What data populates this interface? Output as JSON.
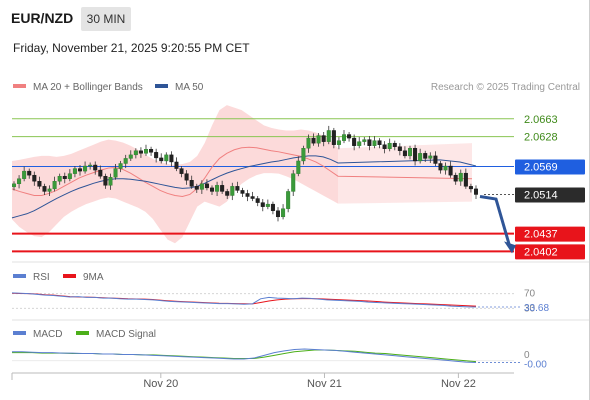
{
  "header": {
    "pair": "EUR/NZD",
    "timeframe": "30 MIN",
    "timestamp": "Friday, November 21, 2025 9:20:55 PM CET"
  },
  "chart_data": [
    {
      "type": "candlestick",
      "legend": [
        {
          "label": "MA 20 + Bollinger Bands",
          "color": "#f08080"
        },
        {
          "label": "MA 50",
          "color": "#2f5597"
        }
      ],
      "credit": "Research © 2025 Trading Central",
      "y_range": [
        2.0385,
        2.07
      ],
      "levels": [
        {
          "value": 2.0663,
          "label": "2.0663",
          "color": "#8ac552",
          "style": "resistance-line"
        },
        {
          "value": 2.0628,
          "label": "2.0628",
          "color": "#8ac552",
          "style": "resistance-line"
        },
        {
          "value": 2.0569,
          "label": "2.0569",
          "color": "#1f5fe0",
          "style": "pivot-box"
        },
        {
          "value": 2.0514,
          "label": "2.0514",
          "color": "#2b2b2b",
          "style": "last-price-box"
        },
        {
          "value": 2.0437,
          "label": "2.0437",
          "color": "#e8141b",
          "style": "target-box"
        },
        {
          "value": 2.0402,
          "label": "2.0402",
          "color": "#e8141b",
          "style": "target-box"
        }
      ],
      "forecast_arrow": {
        "from": 2.051,
        "to": 2.0402,
        "color": "#2f5597"
      },
      "candles_close": [
        2.0535,
        2.0545,
        2.056,
        2.0552,
        2.054,
        2.053,
        2.052,
        2.0525,
        2.054,
        2.055,
        2.0545,
        2.0555,
        2.0565,
        2.056,
        2.057,
        2.0572,
        2.0562,
        2.055,
        2.0532,
        2.0548,
        2.0565,
        2.0575,
        2.0585,
        2.0592,
        2.06,
        2.0595,
        2.0603,
        2.0597,
        2.0586,
        2.058,
        2.0592,
        2.0578,
        2.0565,
        2.0555,
        2.0542,
        2.053,
        2.0524,
        2.0535,
        2.0527,
        2.052,
        2.0532,
        2.052,
        2.0512,
        2.053,
        2.0522,
        2.0516,
        2.051,
        2.0506,
        2.0498,
        2.049,
        2.0495,
        2.0482,
        2.047,
        2.0486,
        2.052,
        2.0555,
        2.058,
        2.0605,
        2.0625,
        2.0615,
        2.063,
        2.0618,
        2.064,
        2.0612,
        2.062,
        2.0632,
        2.0625,
        2.061,
        2.0618,
        2.0622,
        2.061,
        2.062,
        2.0612,
        2.0604,
        2.0615,
        2.0608,
        2.06,
        2.059,
        2.0605,
        2.058,
        2.0595,
        2.0585,
        2.059,
        2.0575,
        2.0562,
        2.057,
        2.0552,
        2.054,
        2.0556,
        2.053,
        2.0525,
        2.0514
      ],
      "bollinger_upper": [
        2.058,
        2.0582,
        2.0585,
        2.0588,
        2.059,
        2.059,
        2.0588,
        2.059,
        2.0594,
        2.06,
        2.0606,
        2.0612,
        2.0618,
        2.0622,
        2.062,
        2.0616,
        2.061,
        2.0602,
        2.0592,
        2.0584,
        2.0578,
        2.0574,
        2.0572,
        2.0574,
        2.0578,
        2.059,
        2.0615,
        2.065,
        2.068,
        2.069,
        2.0685,
        2.068,
        2.067,
        2.066,
        2.065,
        2.0645,
        2.0642,
        2.064,
        2.064,
        2.0642,
        2.064,
        2.0636,
        2.063,
        2.062,
        2.0605
      ],
      "bollinger_lower": [
        2.0465,
        2.045,
        2.044,
        2.0432,
        2.043,
        2.044,
        2.0455,
        2.047,
        2.048,
        2.0488,
        2.0495,
        2.05,
        2.0505,
        2.0508,
        2.0506,
        2.05,
        2.0494,
        2.0488,
        2.048,
        2.0466,
        2.0445,
        2.0425,
        2.0418,
        2.043,
        2.046,
        2.049,
        2.05,
        2.0495,
        2.049,
        2.05,
        2.052,
        2.0535,
        2.0545,
        2.0552,
        2.0556,
        2.0556,
        2.0555,
        2.055,
        2.0544,
        2.0536,
        2.0528,
        2.052,
        2.0512,
        2.0504,
        2.0496
      ],
      "ma20": [
        2.0525,
        2.052,
        2.0516,
        2.0512,
        2.0512,
        2.0516,
        2.0522,
        2.053,
        2.0538,
        2.0546,
        2.0552,
        2.0557,
        2.0562,
        2.0566,
        2.0567,
        2.0563,
        2.0556,
        2.0547,
        2.0538,
        2.053,
        2.0522,
        2.0516,
        2.0512,
        2.051,
        2.0514,
        2.0526,
        2.0546,
        2.0568,
        2.0585,
        2.0595,
        2.0602,
        2.0606,
        2.0607,
        2.0606,
        2.0603,
        2.06,
        2.0598,
        2.0595,
        2.0592,
        2.0589,
        2.0584,
        2.0578,
        2.057,
        2.056,
        2.055
      ],
      "ma50": [
        2.0468,
        2.0472,
        2.0476,
        2.0482,
        2.049,
        2.0498,
        2.0506,
        2.0513,
        2.052,
        2.0526,
        2.0531,
        2.0536,
        2.054,
        2.0543,
        2.0545,
        2.0545,
        2.0544,
        2.0542,
        2.054,
        2.0537,
        2.0534,
        2.0531,
        2.0528,
        2.0526,
        2.0527,
        2.053,
        2.0536,
        2.0543,
        2.055,
        2.0556,
        2.0561,
        2.0565,
        2.0569,
        2.0572,
        2.0575,
        2.0578,
        2.058,
        2.0583,
        2.0586,
        2.0588,
        2.059,
        2.059,
        2.0588,
        2.0583,
        2.0576
      ]
    },
    {
      "type": "line",
      "name": "RSI",
      "legend": [
        {
          "label": "RSI",
          "color": "#5b7fd1"
        },
        {
          "label": "9MA",
          "color": "#e8141b"
        }
      ],
      "y_range": [
        20,
        80
      ],
      "reference_lines": [
        {
          "value": 70,
          "label": "70"
        },
        {
          "value": 30,
          "label": "30"
        }
      ],
      "current_value": "33.68",
      "rsi": [
        72,
        71,
        70,
        68,
        66,
        65,
        63,
        61,
        62,
        60,
        60,
        58,
        58,
        56,
        55,
        55,
        54,
        53,
        51,
        49,
        48,
        47,
        46,
        45,
        44,
        43,
        43,
        42,
        41,
        42,
        56,
        60,
        58,
        57,
        56,
        58,
        57,
        55,
        53,
        52,
        51,
        50,
        49,
        47,
        46,
        45,
        44,
        43,
        42,
        41,
        40,
        39,
        38,
        36,
        35,
        34,
        33.68
      ],
      "ma9": [
        71,
        70.5,
        70,
        69,
        67,
        66,
        64,
        62,
        61,
        60.5,
        60,
        59,
        58,
        57,
        56,
        55.5,
        55,
        54,
        52,
        50.5,
        49,
        48,
        47,
        46,
        45,
        44,
        43.5,
        43,
        42.5,
        42,
        46,
        50,
        53,
        55,
        56,
        56.5,
        56.5,
        56,
        55,
        54,
        53,
        52,
        51,
        50,
        48.5,
        47,
        46,
        45,
        44,
        43,
        42,
        41,
        40,
        39,
        38,
        37,
        36
      ]
    },
    {
      "type": "line",
      "name": "MACD",
      "legend": [
        {
          "label": "MACD",
          "color": "#5b7fd1"
        },
        {
          "label": "MACD Signal",
          "color": "#4caf1a"
        }
      ],
      "y_range": [
        -0.0025,
        0.0035
      ],
      "reference_lines": [
        {
          "value": 0,
          "label": "0"
        }
      ],
      "current_value": "-0.00",
      "macd": [
        0.002,
        0.002,
        0.0019,
        0.0018,
        0.0018,
        0.0017,
        0.0017,
        0.0016,
        0.0016,
        0.0015,
        0.0015,
        0.0014,
        0.0014,
        0.0013,
        0.0012,
        0.0011,
        0.001,
        0.0009,
        0.0008,
        0.0007,
        0.0006,
        0.0005,
        0.0004,
        0.0004,
        0.0006,
        0.0012,
        0.0018,
        0.0022,
        0.0025,
        0.0026,
        0.0025,
        0.0024,
        0.0023,
        0.0021,
        0.0019,
        0.0017,
        0.0015,
        0.0013,
        0.0011,
        0.0009,
        0.0007,
        0.0005,
        0.0003,
        0.0001,
        -0.0001,
        -0.0003,
        -0.0004
      ],
      "signal": [
        0.0018,
        0.0018,
        0.0018,
        0.0017,
        0.0017,
        0.0017,
        0.0016,
        0.0016,
        0.0016,
        0.0015,
        0.0015,
        0.0014,
        0.0014,
        0.0013,
        0.0013,
        0.0012,
        0.0011,
        0.001,
        0.0009,
        0.0008,
        0.0007,
        0.0006,
        0.0005,
        0.0005,
        0.0005,
        0.0008,
        0.0012,
        0.0016,
        0.002,
        0.0022,
        0.0024,
        0.0024,
        0.0023,
        0.0022,
        0.0021,
        0.0019,
        0.0017,
        0.0016,
        0.0014,
        0.0012,
        0.001,
        0.0008,
        0.0006,
        0.0004,
        0.0002,
        0.0,
        -0.0002
      ]
    }
  ],
  "x_axis": {
    "ticks": [
      {
        "label": "Nov 20",
        "frac": 0.3
      },
      {
        "label": "Nov 21",
        "frac": 0.63
      },
      {
        "label": "Nov 22",
        "frac": 0.9
      }
    ]
  }
}
